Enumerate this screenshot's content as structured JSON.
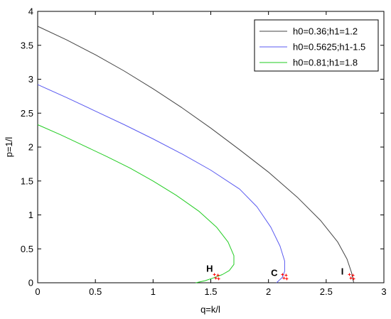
{
  "chart_data": {
    "type": "line",
    "xlabel": "q=k/l",
    "ylabel": "p=1/l",
    "xlim": [
      0,
      3
    ],
    "ylim": [
      0,
      4
    ],
    "xticks": [
      "0",
      "0.5",
      "1",
      "1.5",
      "2",
      "2.5",
      "3"
    ],
    "yticks": [
      "0",
      "0.5",
      "1",
      "1.5",
      "2",
      "2.5",
      "3",
      "3.5",
      "4"
    ],
    "grid": false,
    "legend_position": "top-right",
    "series": [
      {
        "name": "h0=0.36;h1=1.2",
        "color": "#444444",
        "points": [
          [
            0,
            3.78
          ],
          [
            0.25,
            3.58
          ],
          [
            0.5,
            3.36
          ],
          [
            0.75,
            3.12
          ],
          [
            1.0,
            2.86
          ],
          [
            1.25,
            2.58
          ],
          [
            1.5,
            2.28
          ],
          [
            1.75,
            1.96
          ],
          [
            2.0,
            1.63
          ],
          [
            2.25,
            1.26
          ],
          [
            2.45,
            0.92
          ],
          [
            2.6,
            0.6
          ],
          [
            2.68,
            0.35
          ],
          [
            2.72,
            0.15
          ],
          [
            2.73,
            0.05
          ],
          [
            2.74,
            0.0
          ]
        ]
      },
      {
        "name": "h0=0.5625;h1-1.5",
        "color": "#5a5af0",
        "points": [
          [
            0,
            2.92
          ],
          [
            0.25,
            2.73
          ],
          [
            0.5,
            2.53
          ],
          [
            0.75,
            2.33
          ],
          [
            1.0,
            2.12
          ],
          [
            1.25,
            1.9
          ],
          [
            1.5,
            1.66
          ],
          [
            1.75,
            1.38
          ],
          [
            1.9,
            1.12
          ],
          [
            2.02,
            0.82
          ],
          [
            2.1,
            0.54
          ],
          [
            2.14,
            0.32
          ],
          [
            2.14,
            0.17
          ],
          [
            2.12,
            0.08
          ],
          [
            2.07,
            0.0
          ]
        ]
      },
      {
        "name": "h0=0.81;h1=1.8",
        "color": "#22cc22",
        "points": [
          [
            0,
            2.33
          ],
          [
            0.2,
            2.18
          ],
          [
            0.4,
            2.02
          ],
          [
            0.6,
            1.86
          ],
          [
            0.8,
            1.69
          ],
          [
            1.0,
            1.5
          ],
          [
            1.2,
            1.29
          ],
          [
            1.4,
            1.05
          ],
          [
            1.55,
            0.82
          ],
          [
            1.65,
            0.6
          ],
          [
            1.7,
            0.4
          ],
          [
            1.7,
            0.27
          ],
          [
            1.66,
            0.18
          ],
          [
            1.6,
            0.12
          ],
          [
            1.52,
            0.07
          ],
          [
            1.45,
            0.03
          ],
          [
            1.37,
            0.0
          ]
        ]
      }
    ],
    "annotations": [
      {
        "label": "H",
        "x": 1.49,
        "y": 0.16,
        "marker_x": 1.55,
        "marker_y": 0.09,
        "color": "#ff0000"
      },
      {
        "label": "C",
        "x": 2.05,
        "y": 0.1,
        "marker_x": 2.14,
        "marker_y": 0.09,
        "color": "#ff0000"
      },
      {
        "label": "I",
        "x": 2.64,
        "y": 0.12,
        "marker_x": 2.72,
        "marker_y": 0.09,
        "color": "#ff0000"
      }
    ]
  }
}
